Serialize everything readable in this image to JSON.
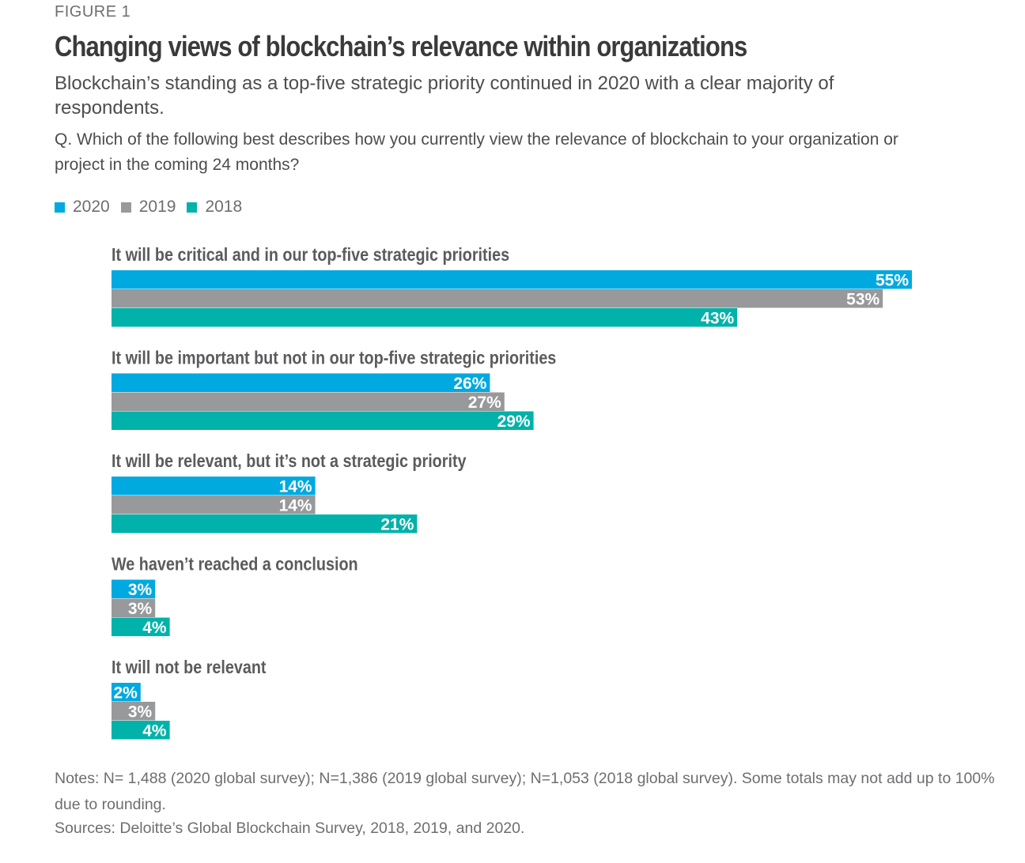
{
  "figure_label": "FIGURE 1",
  "title": "Changing views of blockchain’s relevance within organizations",
  "subtitle": "Blockchain’s standing as a top-five strategic priority continued in 2020 with a clear majority of respondents.",
  "question": "Q. Which of the following best describes how you currently view the relevance of blockchain to your organization or project in the coming 24 months?",
  "colors": {
    "2020": "#00a9e0",
    "2019": "#97999b",
    "2018": "#00b2a9"
  },
  "chart_data": {
    "type": "bar",
    "orientation": "horizontal",
    "title": "Changing views of blockchain’s relevance within organizations",
    "xlabel": "",
    "ylabel": "",
    "xlim": [
      0,
      55
    ],
    "unit": "%",
    "legend_position": "top-left",
    "categories": [
      "It will be critical and in our top-five strategic priorities",
      "It will be important but not in our top-five strategic priorities",
      "It will be relevant, but it’s not a strategic priority",
      "We haven’t reached a conclusion",
      "It will not be relevant"
    ],
    "series": [
      {
        "name": "2020",
        "values": [
          55,
          26,
          14,
          3,
          2
        ]
      },
      {
        "name": "2019",
        "values": [
          53,
          27,
          14,
          3,
          3
        ]
      },
      {
        "name": "2018",
        "values": [
          43,
          29,
          21,
          4,
          4
        ]
      }
    ]
  },
  "notes": "Notes: N= 1,488 (2020 global survey); N=1,386 (2019 global survey); N=1,053 (2018 global survey). Some totals may not add up to 100% due to rounding.",
  "sources": "Sources: Deloitte’s Global Blockchain Survey, 2018, 2019, and 2020."
}
